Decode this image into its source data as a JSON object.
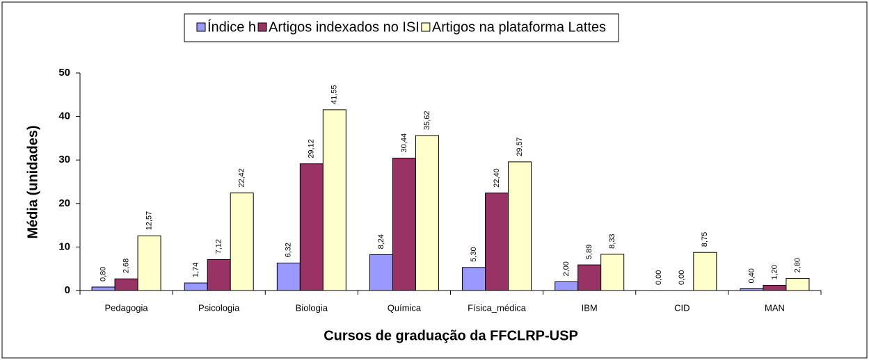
{
  "chart_data": {
    "type": "bar",
    "x_label": "Cursos de graduação da FFCLRP-USP",
    "y_label": "Média (unidades)",
    "categories": [
      "Pedagogia",
      "Psicologia",
      "Biologia",
      "Química",
      "Física_médica",
      "IBM",
      "CID",
      "MAN"
    ],
    "series": [
      {
        "name": "Índice h",
        "color": "#9999ff",
        "values": [
          0.8,
          1.74,
          6.32,
          8.24,
          5.3,
          2.0,
          0.0,
          0.4
        ],
        "value_labels": [
          "0,80",
          "1,74",
          "6,32",
          "8,24",
          "5,30",
          "2,00",
          "0,00",
          "0,40"
        ]
      },
      {
        "name": "Artigos indexados no ISI",
        "color": "#993366",
        "values": [
          2.68,
          7.12,
          29.12,
          30.44,
          22.4,
          5.89,
          0.0,
          1.2
        ],
        "value_labels": [
          "2,68",
          "7,12",
          "29,12",
          "30,44",
          "22,40",
          "5,89",
          "0,00",
          "1,20"
        ]
      },
      {
        "name": "Artigos na plataforma Lattes",
        "color": "#ffffcc",
        "values": [
          12.57,
          22.42,
          41.55,
          35.62,
          29.57,
          8.33,
          8.75,
          2.8
        ],
        "value_labels": [
          "12,57",
          "22,42",
          "41,55",
          "35,62",
          "29,57",
          "8,33",
          "8,75",
          "2,80"
        ]
      }
    ],
    "ylim": [
      0,
      50
    ],
    "yticks": [
      0,
      10,
      20,
      30,
      40,
      50
    ],
    "grid": false,
    "legend": "top"
  }
}
